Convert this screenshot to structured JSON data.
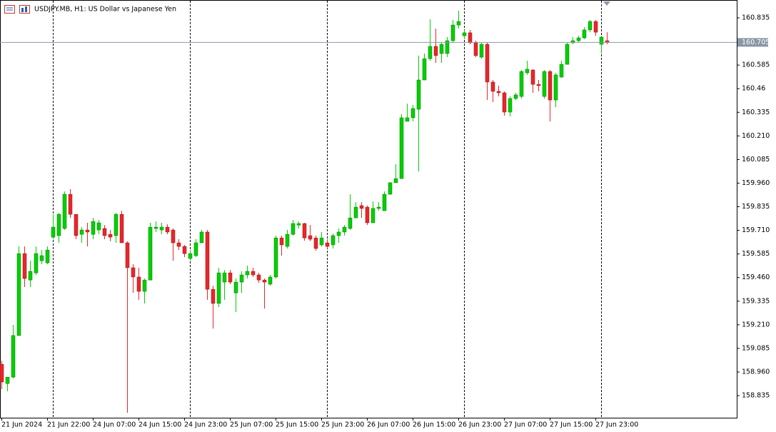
{
  "chart_data": {
    "type": "candlestick",
    "title": "USDJPY.MB, H1:  US Dollar vs Japanese Yen",
    "categories": [
      "21 Jun 2024",
      null,
      null,
      null,
      null,
      null,
      null,
      null,
      "21 Jun 22:00",
      null,
      null,
      null,
      null,
      null,
      null,
      null,
      "24 Jun 07:00",
      null,
      null,
      null,
      null,
      null,
      null,
      null,
      "24 Jun 15:00",
      null,
      null,
      null,
      null,
      null,
      null,
      null,
      "24 Jun 23:00",
      null,
      null,
      null,
      null,
      null,
      null,
      null,
      "25 Jun 07:00",
      null,
      null,
      null,
      null,
      null,
      null,
      null,
      "25 Jun 15:00",
      null,
      null,
      null,
      null,
      null,
      null,
      null,
      "25 Jun 23:00",
      null,
      null,
      null,
      null,
      null,
      null,
      null,
      "26 Jun 07:00",
      null,
      null,
      null,
      null,
      null,
      null,
      null,
      "26 Jun 15:00",
      null,
      null,
      null,
      null,
      null,
      null,
      null,
      "26 Jun 23:00",
      null,
      null,
      null,
      null,
      null,
      null,
      null,
      "27 Jun 07:00",
      null,
      null,
      null,
      null,
      null,
      null,
      null,
      "27 Jun 15:00",
      null,
      null,
      null,
      null,
      null,
      null,
      null,
      "27 Jun 23:00",
      null,
      null
    ],
    "open": [
      159.001,
      158.899,
      158.933,
      159.153,
      159.587,
      159.447,
      159.485,
      159.549,
      159.538,
      159.674,
      159.682,
      159.72,
      159.901,
      159.795,
      159.689,
      159.712,
      159.689,
      159.712,
      159.72,
      159.689,
      159.682,
      159.795,
      159.644,
      159.512,
      159.463,
      159.387,
      159.447,
      159.72,
      159.712,
      159.727,
      159.712,
      159.644,
      159.625,
      159.561,
      159.576,
      159.644,
      159.701,
      159.398,
      159.323,
      159.436,
      159.485,
      159.379,
      159.436,
      159.474,
      159.493,
      159.474,
      159.447,
      159.425,
      159.463,
      159.67,
      159.625,
      159.689,
      159.738,
      159.746,
      159.682,
      159.67,
      159.633,
      159.644,
      159.633,
      159.682,
      159.701,
      159.72,
      159.776,
      159.841,
      159.833,
      159.75,
      159.826,
      159.814,
      159.901,
      159.962,
      159.984,
      160.287,
      160.306,
      160.351,
      160.506,
      160.619,
      160.684,
      160.646,
      160.646,
      160.714,
      160.797,
      160.74,
      160.756,
      160.703,
      160.627,
      160.695,
      160.495,
      160.446,
      160.438,
      160.336,
      160.408,
      160.419,
      160.544,
      160.559,
      160.483,
      160.419,
      160.551,
      160.4,
      160.521,
      160.589,
      160.703,
      160.714,
      160.729,
      160.771,
      160.816,
      160.695,
      160.714
    ],
    "high": [
      159.02,
      158.933,
      159.209,
      159.625,
      159.625,
      159.549,
      159.625,
      159.606,
      159.625,
      159.795,
      159.803,
      159.916,
      159.928,
      159.795,
      159.727,
      159.75,
      159.776,
      159.765,
      159.738,
      159.712,
      159.803,
      159.814,
      159.652,
      159.531,
      159.512,
      159.455,
      159.75,
      159.757,
      159.75,
      159.742,
      159.72,
      159.663,
      159.633,
      159.606,
      159.663,
      159.712,
      159.712,
      159.417,
      159.512,
      159.5,
      159.5,
      159.455,
      159.493,
      159.523,
      159.512,
      159.485,
      159.455,
      159.474,
      159.682,
      159.682,
      159.712,
      159.765,
      159.757,
      159.75,
      159.738,
      159.682,
      159.701,
      159.663,
      159.693,
      159.72,
      159.738,
      159.901,
      159.859,
      159.859,
      159.841,
      159.863,
      159.859,
      159.916,
      159.965,
      160.06,
      160.325,
      160.381,
      160.374,
      160.635,
      160.646,
      160.827,
      160.778,
      160.703,
      160.733,
      160.824,
      160.873,
      160.771,
      160.771,
      160.714,
      160.703,
      160.703,
      160.506,
      160.476,
      160.446,
      160.419,
      160.438,
      160.559,
      160.608,
      160.563,
      160.506,
      160.559,
      160.559,
      160.544,
      160.608,
      160.703,
      160.733,
      160.74,
      160.786,
      160.824,
      160.824,
      160.74,
      160.759
    ],
    "low": [
      158.869,
      158.858,
      158.926,
      159.153,
      159.41,
      159.41,
      159.474,
      159.531,
      159.531,
      159.663,
      159.644,
      159.712,
      159.776,
      159.663,
      159.644,
      159.625,
      159.663,
      159.689,
      159.663,
      159.652,
      159.644,
      159.644,
      158.744,
      159.379,
      159.342,
      159.323,
      159.447,
      159.701,
      159.689,
      159.689,
      159.549,
      159.606,
      159.568,
      159.549,
      159.568,
      159.644,
      159.342,
      159.19,
      159.304,
      159.342,
      159.425,
      159.277,
      159.379,
      159.455,
      159.463,
      159.432,
      159.296,
      159.417,
      159.455,
      159.576,
      159.614,
      159.682,
      159.72,
      159.655,
      159.652,
      159.602,
      159.625,
      159.614,
      159.614,
      159.644,
      159.682,
      159.712,
      159.776,
      159.776,
      159.738,
      159.75,
      159.814,
      159.814,
      159.901,
      159.962,
      159.984,
      160.287,
      160.287,
      160.022,
      160.506,
      160.608,
      160.597,
      160.597,
      160.627,
      160.703,
      160.778,
      160.722,
      160.695,
      160.627,
      160.619,
      160.4,
      160.389,
      160.419,
      160.317,
      160.313,
      160.4,
      160.408,
      160.533,
      160.438,
      160.446,
      160.408,
      160.287,
      160.362,
      160.521,
      160.589,
      160.695,
      160.703,
      160.722,
      160.759,
      160.74,
      160.646,
      160.695
    ],
    "close": [
      158.907,
      158.933,
      159.153,
      159.587,
      159.455,
      159.493,
      159.587,
      159.576,
      159.606,
      159.727,
      159.795,
      159.901,
      159.795,
      159.682,
      159.712,
      159.701,
      159.757,
      159.75,
      159.682,
      159.674,
      159.795,
      159.644,
      159.512,
      159.463,
      159.387,
      159.447,
      159.727,
      159.727,
      159.727,
      159.701,
      159.644,
      159.625,
      159.587,
      159.587,
      159.644,
      159.701,
      159.398,
      159.323,
      159.485,
      159.485,
      159.436,
      159.436,
      159.474,
      159.493,
      159.474,
      159.447,
      159.436,
      159.463,
      159.67,
      159.633,
      159.689,
      159.746,
      159.746,
      159.67,
      159.663,
      159.614,
      159.67,
      159.625,
      159.682,
      159.701,
      159.727,
      159.776,
      159.833,
      159.826,
      159.75,
      159.826,
      159.833,
      159.901,
      159.962,
      159.984,
      160.306,
      160.306,
      160.355,
      160.506,
      160.619,
      160.684,
      160.635,
      160.695,
      160.714,
      160.797,
      160.816,
      160.756,
      160.703,
      160.635,
      160.695,
      160.495,
      160.446,
      160.438,
      160.336,
      160.408,
      160.427,
      160.551,
      160.563,
      160.483,
      160.476,
      160.551,
      160.4,
      160.533,
      160.589,
      160.695,
      160.714,
      160.729,
      160.771,
      160.816,
      160.759,
      160.733,
      160.705
    ],
    "up_color": "#00d000",
    "down_color": "#e8262b",
    "ylim": [
      158.718,
      160.9295
    ],
    "yticks": [
      160.835,
      160.585,
      160.46,
      160.335,
      {
        "value": 160.21,
        "label": "160.210"
      },
      160.085,
      {
        "value": 159.96,
        "label": "159.960"
      },
      159.835,
      {
        "value": 159.71,
        "label": "159.710"
      },
      159.585,
      {
        "value": 159.46,
        "label": "159.460"
      },
      159.335,
      {
        "value": 159.21,
        "label": "159.210"
      },
      159.085,
      {
        "value": 158.96,
        "label": "158.960"
      },
      158.835
    ],
    "last_price": 160.705
  }
}
